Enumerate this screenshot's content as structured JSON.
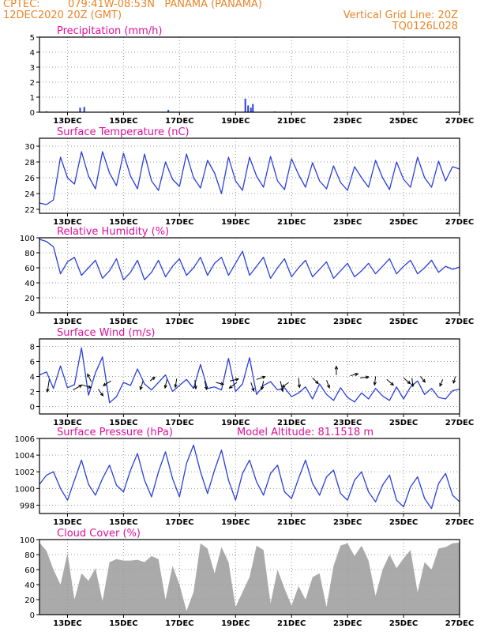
{
  "header": {
    "source": "CPTEC:",
    "location": "079:41W-08:53N   PANAMA (PANAMA)",
    "datetime": "12DEC2020 20Z (GMT)",
    "grid_note": "Vertical Grid Line: 20Z",
    "code": "TQ0126L028"
  },
  "colors": {
    "header": "#e8862a",
    "title": "#e0109a",
    "line": "#2a3fd8",
    "cloud": "#aaaaaa",
    "grid": "#999999"
  },
  "x_ticks": [
    "13DEC",
    "15DEC",
    "17DEC",
    "19DEC",
    "21DEC",
    "23DEC",
    "25DEC",
    "27DEC"
  ],
  "chart_data": [
    {
      "id": "precip",
      "type": "bar",
      "title": "Precipitation (mm/h)",
      "ylim": [
        0,
        5
      ],
      "yticks": [
        0,
        1,
        2,
        3,
        4,
        5
      ],
      "x_unit": "days since 12DEC 20Z",
      "x": [
        0.25,
        1.45,
        1.6,
        4.6,
        7.35,
        7.45,
        7.55,
        7.62,
        8.4
      ],
      "values": [
        0.06,
        0.3,
        0.35,
        0.15,
        0.9,
        0.45,
        0.3,
        0.55,
        0.05
      ]
    },
    {
      "id": "temp",
      "type": "line",
      "title": "Surface Temperature (nC)",
      "ylim": [
        21.5,
        31
      ],
      "yticks": [
        22,
        24,
        26,
        28,
        30
      ],
      "x_unit": "days since 12DEC 20Z",
      "x": [
        0,
        0.25,
        0.5,
        0.75,
        1,
        1.25,
        1.5,
        1.75,
        2,
        2.25,
        2.5,
        2.75,
        3,
        3.25,
        3.5,
        3.75,
        4,
        4.25,
        4.5,
        4.75,
        5,
        5.25,
        5.5,
        5.75,
        6,
        6.25,
        6.5,
        6.75,
        7,
        7.25,
        7.5,
        7.75,
        8,
        8.25,
        8.5,
        8.75,
        9,
        9.25,
        9.5,
        9.75,
        10,
        10.25,
        10.5,
        10.75,
        11,
        11.25,
        11.5,
        11.75,
        12,
        12.25,
        12.5,
        12.75,
        13,
        13.25,
        13.5,
        13.75,
        14,
        14.25,
        14.5,
        14.75,
        15
      ],
      "values": [
        22.8,
        22.6,
        23.2,
        28.6,
        26.0,
        25.2,
        29.3,
        26.2,
        24.6,
        29.3,
        26.6,
        25.0,
        29.1,
        26.2,
        24.6,
        29.0,
        25.6,
        24.4,
        28.0,
        25.8,
        24.9,
        29.0,
        26.0,
        24.7,
        28.2,
        26.6,
        24.0,
        28.6,
        25.6,
        24.4,
        28.6,
        26.2,
        24.8,
        28.7,
        25.6,
        24.5,
        28.4,
        26.4,
        24.8,
        27.9,
        25.6,
        24.6,
        27.5,
        25.4,
        24.4,
        27.4,
        26.0,
        24.8,
        28.2,
        26.0,
        24.5,
        28.0,
        25.8,
        24.8,
        28.6,
        26.0,
        24.8,
        28.1,
        25.6,
        27.4,
        27.1
      ]
    },
    {
      "id": "rh",
      "type": "line",
      "title": "Relative Humidity (%)",
      "ylim": [
        0,
        100
      ],
      "yticks": [
        0,
        20,
        40,
        60,
        80,
        100
      ],
      "x_unit": "days since 12DEC 20Z",
      "x": [
        0,
        0.25,
        0.5,
        0.75,
        1,
        1.25,
        1.5,
        1.75,
        2,
        2.25,
        2.5,
        2.75,
        3,
        3.25,
        3.5,
        3.75,
        4,
        4.25,
        4.5,
        4.75,
        5,
        5.25,
        5.5,
        5.75,
        6,
        6.25,
        6.5,
        6.75,
        7,
        7.25,
        7.5,
        7.75,
        8,
        8.25,
        8.5,
        8.75,
        9,
        9.25,
        9.5,
        9.75,
        10,
        10.25,
        10.5,
        10.75,
        11,
        11.25,
        11.5,
        11.75,
        12,
        12.25,
        12.5,
        12.75,
        13,
        13.25,
        13.5,
        13.75,
        14,
        14.25,
        14.5,
        14.75,
        15
      ],
      "values": [
        98,
        95,
        88,
        52,
        68,
        74,
        50,
        60,
        70,
        46,
        56,
        72,
        44,
        54,
        70,
        44,
        54,
        70,
        48,
        62,
        72,
        50,
        60,
        74,
        50,
        66,
        74,
        50,
        66,
        82,
        50,
        62,
        74,
        46,
        60,
        72,
        48,
        60,
        70,
        48,
        58,
        68,
        46,
        56,
        66,
        48,
        56,
        66,
        52,
        62,
        72,
        52,
        62,
        70,
        52,
        60,
        70,
        54,
        62,
        58,
        61
      ]
    },
    {
      "id": "wind",
      "type": "line",
      "title": "Surface Wind (m/s)",
      "ylim": [
        -1,
        9
      ],
      "yticks": [
        0,
        2,
        4,
        6,
        8
      ],
      "x_unit": "days since 12DEC 20Z",
      "x": [
        0,
        0.25,
        0.5,
        0.75,
        1,
        1.25,
        1.5,
        1.75,
        2,
        2.25,
        2.5,
        2.75,
        3,
        3.25,
        3.5,
        3.75,
        4,
        4.25,
        4.5,
        4.75,
        5,
        5.25,
        5.5,
        5.75,
        6,
        6.25,
        6.5,
        6.75,
        7,
        7.25,
        7.5,
        7.75,
        8,
        8.25,
        8.5,
        8.75,
        9,
        9.25,
        9.5,
        9.75,
        10,
        10.25,
        10.5,
        10.75,
        11,
        11.25,
        11.5,
        11.75,
        12,
        12.25,
        12.5,
        12.75,
        13,
        13.25,
        13.5,
        13.75,
        14,
        14.25,
        14.5,
        14.75,
        15
      ],
      "values": [
        4.2,
        4.6,
        2.4,
        5.4,
        2.5,
        2.9,
        7.8,
        1.5,
        4.5,
        6.6,
        0.5,
        1.3,
        3.2,
        2.8,
        5.0,
        3.0,
        2.2,
        3.2,
        4.2,
        2.0,
        2.8,
        3.6,
        2.4,
        5.6,
        2.4,
        2.6,
        2.2,
        6.4,
        2.0,
        3.0,
        6.5,
        1.6,
        2.8,
        3.3,
        2.2,
        2.5,
        1.3,
        1.8,
        2.6,
        1.0,
        3.0,
        1.6,
        0.8,
        2.5,
        1.2,
        0.6,
        1.8,
        1.0,
        2.4,
        1.4,
        0.8,
        2.6,
        1.0,
        2.6,
        3.4,
        1.6,
        2.4,
        1.2,
        1.0,
        2.1,
        2.3
      ],
      "arrows": [
        {
          "x": 0.35,
          "y": 3.6,
          "u": -0.4,
          "v": -2.6
        },
        {
          "x": 1.2,
          "y": 2.2,
          "u": 1.8,
          "v": 1.0
        },
        {
          "x": 1.5,
          "y": 2.9,
          "u": 2.0,
          "v": -0.6
        },
        {
          "x": 1.85,
          "y": 3.3,
          "u": -0.8,
          "v": 1.6
        },
        {
          "x": 2.1,
          "y": 2.3,
          "u": 1.0,
          "v": -1.4
        },
        {
          "x": 2.55,
          "y": 3.4,
          "u": -1.6,
          "v": -1.0
        },
        {
          "x": 3.7,
          "y": 3.4,
          "u": -0.6,
          "v": -1.8
        },
        {
          "x": 3.95,
          "y": 3.4,
          "u": 1.0,
          "v": 0.8
        },
        {
          "x": 4.55,
          "y": 3.6,
          "u": -0.4,
          "v": -1.8
        },
        {
          "x": 4.9,
          "y": 3.7,
          "u": -0.3,
          "v": -1.8
        },
        {
          "x": 5.55,
          "y": 3.5,
          "u": 0.2,
          "v": -1.8
        },
        {
          "x": 5.9,
          "y": 3.4,
          "u": 0.4,
          "v": -1.8
        },
        {
          "x": 6.3,
          "y": 3.2,
          "u": 1.6,
          "v": -0.4
        },
        {
          "x": 6.8,
          "y": 3.4,
          "u": 1.8,
          "v": 0.4
        },
        {
          "x": 7.05,
          "y": 3.2,
          "u": -1.6,
          "v": -1.2
        },
        {
          "x": 7.55,
          "y": 3.2,
          "u": 0.6,
          "v": -1.8
        },
        {
          "x": 7.75,
          "y": 3.6,
          "u": 1.8,
          "v": 0.6
        },
        {
          "x": 8.0,
          "y": 3.4,
          "u": -0.4,
          "v": -1.8
        },
        {
          "x": 8.6,
          "y": 3.4,
          "u": 0.5,
          "v": -2.2
        },
        {
          "x": 8.9,
          "y": 3.2,
          "u": -1.4,
          "v": -1.0
        },
        {
          "x": 9.25,
          "y": 3.8,
          "u": 0.2,
          "v": -2.0
        },
        {
          "x": 9.75,
          "y": 3.8,
          "u": 1.2,
          "v": -1.2
        },
        {
          "x": 10.25,
          "y": 3.5,
          "u": 0.6,
          "v": -1.6
        },
        {
          "x": 10.6,
          "y": 4.2,
          "u": 0.0,
          "v": 1.8
        },
        {
          "x": 11.1,
          "y": 4.1,
          "u": 1.6,
          "v": 0.4
        },
        {
          "x": 11.45,
          "y": 3.8,
          "u": 1.8,
          "v": 0.2
        },
        {
          "x": 12.0,
          "y": 4.0,
          "u": -0.2,
          "v": -1.8
        },
        {
          "x": 12.4,
          "y": 3.6,
          "u": 1.4,
          "v": -1.2
        },
        {
          "x": 13.0,
          "y": 3.8,
          "u": 1.4,
          "v": -1.2
        },
        {
          "x": 13.3,
          "y": 3.8,
          "u": 0.2,
          "v": -1.8
        },
        {
          "x": 13.6,
          "y": 4.0,
          "u": 1.0,
          "v": -1.2
        },
        {
          "x": 14.4,
          "y": 3.6,
          "u": -0.6,
          "v": -1.4
        },
        {
          "x": 14.85,
          "y": 4.0,
          "u": -0.4,
          "v": -1.4
        }
      ]
    },
    {
      "id": "pressure",
      "type": "line",
      "title": "Surface Pressure (hPa)",
      "annotation": "Model Altitude: 81.1518 m",
      "ylim": [
        997,
        1006
      ],
      "yticks": [
        998,
        1000,
        1002,
        1004,
        1006
      ],
      "x_unit": "days since 12DEC 20Z",
      "x": [
        0,
        0.25,
        0.5,
        0.75,
        1,
        1.25,
        1.5,
        1.75,
        2,
        2.25,
        2.5,
        2.75,
        3,
        3.25,
        3.5,
        3.75,
        4,
        4.25,
        4.5,
        4.75,
        5,
        5.25,
        5.5,
        5.75,
        6,
        6.25,
        6.5,
        6.75,
        7,
        7.25,
        7.5,
        7.75,
        8,
        8.25,
        8.5,
        8.75,
        9,
        9.25,
        9.5,
        9.75,
        10,
        10.25,
        10.5,
        10.75,
        11,
        11.25,
        11.5,
        11.75,
        12,
        12.25,
        12.5,
        12.75,
        13,
        13.25,
        13.5,
        13.75,
        14,
        14.25,
        14.5,
        14.75,
        15
      ],
      "values": [
        1000.5,
        1001.6,
        1002.0,
        1000.0,
        998.6,
        1001.0,
        1003.4,
        1000.5,
        999.2,
        1001.2,
        1002.8,
        1000.4,
        999.6,
        1002.2,
        1004.2,
        1001.0,
        999.0,
        1002.0,
        1004.4,
        1001.2,
        999.0,
        1003.0,
        1005.2,
        1002.0,
        999.4,
        1002.2,
        1004.6,
        1001.0,
        998.6,
        1001.8,
        1003.4,
        1000.8,
        999.2,
        1001.8,
        1002.8,
        999.6,
        998.8,
        1001.2,
        1003.4,
        1000.6,
        999.2,
        1001.4,
        1002.2,
        999.4,
        998.6,
        1001.0,
        1002.0,
        999.6,
        998.4,
        1000.4,
        1001.6,
        998.6,
        997.8,
        1000.2,
        1001.4,
        998.8,
        997.6,
        1000.6,
        1001.8,
        999.2,
        998.4
      ]
    },
    {
      "id": "cloud",
      "type": "area",
      "title": "Cloud Cover (%)",
      "ylim": [
        0,
        100
      ],
      "yticks": [
        0,
        20,
        40,
        60,
        80,
        100
      ],
      "x_unit": "days since 12DEC 20Z",
      "x": [
        0,
        0.25,
        0.5,
        0.75,
        1,
        1.25,
        1.5,
        1.75,
        2,
        2.25,
        2.5,
        2.75,
        3,
        3.25,
        3.5,
        3.75,
        4,
        4.25,
        4.5,
        4.75,
        5,
        5.25,
        5.5,
        5.75,
        6,
        6.25,
        6.5,
        6.75,
        7,
        7.25,
        7.5,
        7.75,
        8,
        8.25,
        8.5,
        8.75,
        9,
        9.25,
        9.5,
        9.75,
        10,
        10.25,
        10.5,
        10.75,
        11,
        11.25,
        11.5,
        11.75,
        12,
        12.25,
        12.5,
        12.75,
        13,
        13.25,
        13.5,
        13.75,
        14,
        14.25,
        14.5,
        14.75,
        15
      ],
      "values": [
        96,
        85,
        60,
        40,
        82,
        20,
        55,
        45,
        62,
        18,
        70,
        74,
        72,
        72,
        73,
        70,
        78,
        74,
        20,
        65,
        40,
        5,
        30,
        95,
        88,
        55,
        90,
        70,
        10,
        30,
        50,
        92,
        86,
        15,
        60,
        35,
        12,
        38,
        20,
        50,
        55,
        10,
        65,
        92,
        95,
        78,
        92,
        72,
        25,
        60,
        80,
        62,
        75,
        86,
        30,
        70,
        60,
        88,
        90,
        95,
        96
      ]
    }
  ]
}
